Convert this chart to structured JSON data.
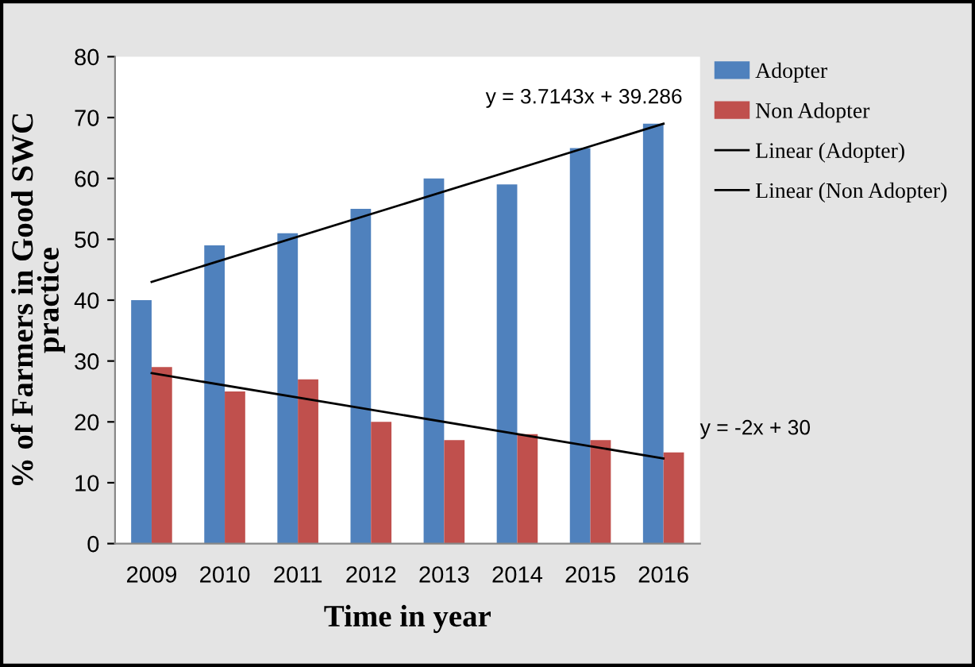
{
  "chart_data": {
    "type": "bar",
    "xlabel": "Time in year",
    "ylabel": "% of Farmers in Good SWC\npractice",
    "categories": [
      "2009",
      "2010",
      "2011",
      "2012",
      "2013",
      "2014",
      "2015",
      "2016"
    ],
    "series": [
      {
        "name": "Adopter",
        "color": "#4f81bd",
        "values": [
          40,
          49,
          51,
          55,
          60,
          59,
          65,
          69
        ]
      },
      {
        "name": "Non Adopter",
        "color": "#c0504d",
        "values": [
          29,
          25,
          27,
          20,
          17,
          18,
          17,
          15
        ]
      },
      {
        "name": "Linear (Adopter)",
        "type": "line",
        "color": "#000000",
        "values": [
          43,
          null,
          null,
          null,
          null,
          null,
          null,
          69
        ]
      },
      {
        "name": "Linear (Non Adopter)",
        "type": "line",
        "color": "#000000",
        "values": [
          28,
          null,
          null,
          null,
          null,
          null,
          null,
          14
        ]
      }
    ],
    "annotations": [
      "y = 3.7143x + 39.286",
      "y = -2x + 30"
    ],
    "ylim": [
      0,
      80
    ],
    "yticks": [
      0,
      10,
      20,
      30,
      40,
      50,
      60,
      70,
      80
    ],
    "grid": false,
    "legend": "right",
    "marker": "none",
    "line_style": "solid"
  }
}
